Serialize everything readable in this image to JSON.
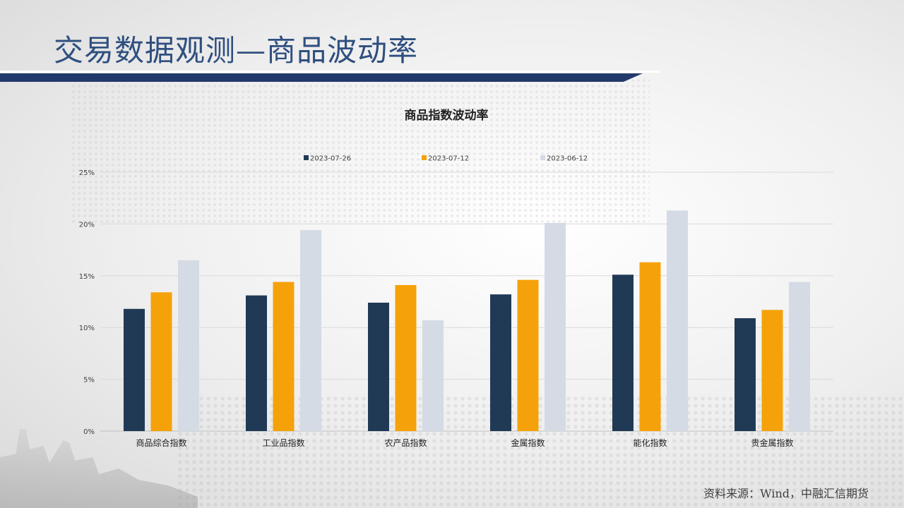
{
  "slide": {
    "title": "交易数据观测—商品波动率",
    "source": "资料来源：Wind，中融汇信期货"
  },
  "colors": {
    "title_text": "#2f4f7f",
    "title_bar": "#223a6a"
  },
  "chart_data": {
    "type": "bar",
    "title": "商品指数波动率",
    "xlabel": "",
    "ylabel": "",
    "categories": [
      "商品综合指数",
      "工业品指数",
      "农产品指数",
      "金属指数",
      "能化指数",
      "贵金属指数"
    ],
    "series": [
      {
        "name": "2023-07-26",
        "color": "#203a56",
        "values": [
          11.8,
          13.1,
          12.4,
          13.2,
          15.1,
          10.9
        ]
      },
      {
        "name": "2023-07-12",
        "color": "#f5a20a",
        "values": [
          13.4,
          14.4,
          14.1,
          14.6,
          16.3,
          11.7
        ]
      },
      {
        "name": "2023-06-12",
        "color": "#d4dbe4",
        "values": [
          16.5,
          19.4,
          10.7,
          20.1,
          21.3,
          14.4
        ]
      }
    ],
    "ylim": [
      0,
      25
    ],
    "yticks": [
      "0%",
      "5%",
      "10%",
      "15%",
      "20%",
      "25%"
    ],
    "ytick_values": [
      0,
      5,
      10,
      15,
      20,
      25
    ],
    "grid": true,
    "legend_position": "top"
  }
}
